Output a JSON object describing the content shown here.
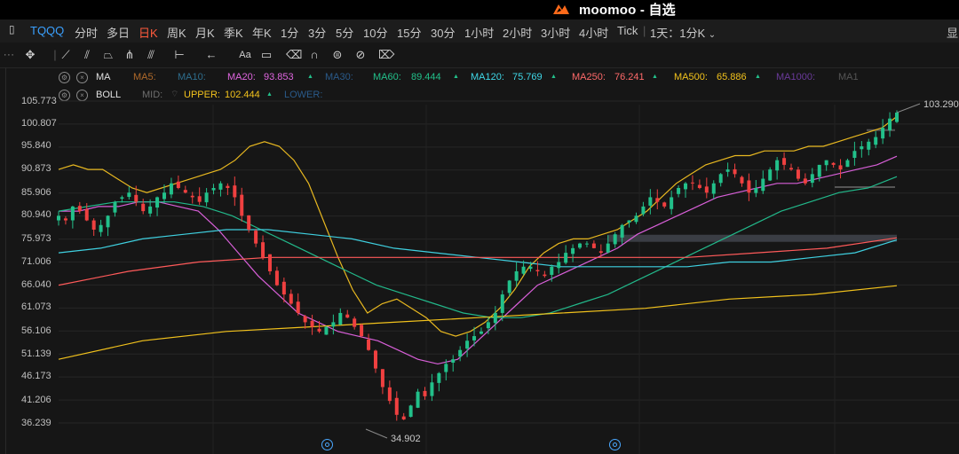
{
  "titlebar": {
    "app_title": "moomoo - 自选"
  },
  "toolbar": {
    "symbol": "TQQQ",
    "periods": [
      "分时",
      "多日",
      "日K",
      "周K",
      "月K",
      "季K",
      "年K",
      "1分",
      "3分",
      "5分",
      "10分",
      "15分",
      "30分",
      "1小时",
      "2小时",
      "3小时",
      "4小时",
      "Tick"
    ],
    "active_period": "日K",
    "multi_select": "1天：1分K",
    "right_label": "显"
  },
  "indicators": {
    "ma": {
      "name": "MA",
      "items": [
        {
          "label": "MA5:",
          "value": "",
          "color": "#b06a2a"
        },
        {
          "label": "MA10:",
          "value": "",
          "color": "#2e6e8e"
        },
        {
          "label": "MA20:",
          "value": "93.853",
          "color": "#e066e0"
        },
        {
          "label": "MA30:",
          "value": "",
          "color": "#2a5a8a"
        },
        {
          "label": "MA60:",
          "value": "89.444",
          "color": "#22c08a"
        },
        {
          "label": "MA120:",
          "value": "75.769",
          "color": "#3fd8e8"
        },
        {
          "label": "MA250:",
          "value": "76.241",
          "color": "#ff6a6a"
        },
        {
          "label": "MA500:",
          "value": "65.886",
          "color": "#f2c21c"
        },
        {
          "label": "MA1000:",
          "value": "",
          "color": "#6a3a9a"
        },
        {
          "label": "MA1",
          "value": "",
          "color": "#555555"
        }
      ]
    },
    "boll": {
      "name": "BOLL",
      "items": [
        {
          "label": "MID:",
          "value": "",
          "color": "#6e6e6e"
        },
        {
          "label": "UPPER:",
          "value": "102.444",
          "color": "#f2c21c"
        },
        {
          "label": "LOWER:",
          "value": "",
          "color": "#2a5a8a"
        }
      ]
    }
  },
  "y_axis": [
    "105.773",
    "100.807",
    "95.840",
    "90.873",
    "85.906",
    "80.940",
    "75.973",
    "71.006",
    "66.040",
    "61.073",
    "56.106",
    "51.139",
    "46.173",
    "41.206",
    "36.239"
  ],
  "annotations": {
    "high_label": "103.290",
    "low_label": "34.902"
  },
  "chart_data": {
    "type": "candlestick",
    "ylim": [
      33.5,
      108.7
    ],
    "y_ticks": [
      105.773,
      100.807,
      95.84,
      90.873,
      85.906,
      80.94,
      75.973,
      71.006,
      66.04,
      61.073,
      56.106,
      51.139,
      46.173,
      41.206,
      36.239
    ],
    "high": 103.29,
    "low": 34.902,
    "closes_approx": [
      81,
      80,
      83,
      82,
      80,
      78,
      79,
      81,
      84,
      85,
      86,
      84,
      82,
      83,
      85,
      86,
      88,
      87,
      86,
      85,
      84,
      86,
      87,
      88,
      87,
      85,
      81,
      78,
      75,
      72,
      69,
      66,
      64,
      62,
      60,
      58,
      57,
      56,
      57,
      58,
      60,
      59,
      57,
      55,
      52,
      48,
      44,
      41,
      38,
      37,
      40,
      43,
      42,
      45,
      47,
      49,
      50,
      52,
      54,
      55,
      56,
      58,
      60,
      64,
      67,
      69,
      70,
      70,
      69,
      68,
      70,
      71,
      73,
      74,
      75,
      75,
      74,
      73,
      75,
      77,
      79,
      80,
      81,
      83,
      85,
      84,
      83,
      85,
      87,
      88,
      88,
      87,
      86,
      88,
      90,
      91,
      90,
      88,
      86,
      87,
      89,
      91,
      93,
      92,
      91,
      89,
      88,
      90,
      92,
      93,
      92,
      91,
      93,
      95,
      96,
      97,
      98,
      100,
      102,
      103.29
    ],
    "series": [
      {
        "name": "BOLL UPPER",
        "color": "#e8b820",
        "values": [
          91,
          92,
          91,
          91,
          89,
          87,
          86,
          87,
          88,
          89,
          90,
          91,
          93,
          96,
          97,
          96,
          93,
          88,
          80,
          72,
          65,
          60,
          62,
          63,
          61,
          59,
          56,
          55,
          56,
          58,
          61,
          65,
          70,
          73,
          75,
          76,
          76,
          77,
          78,
          80,
          82,
          85,
          88,
          90,
          92,
          93,
          94,
          94,
          95,
          95,
          95,
          96,
          96,
          97,
          98,
          99,
          100,
          102.444
        ]
      },
      {
        "name": "MA20",
        "color": "#d85fd8",
        "values": [
          82,
          82,
          83,
          83,
          84,
          84,
          83,
          82,
          78,
          73,
          68,
          64,
          60,
          58,
          56,
          55,
          54,
          52,
          50,
          49,
          50,
          54,
          58,
          62,
          66,
          68,
          70,
          72,
          74,
          77,
          79,
          81,
          83,
          85,
          86,
          87,
          88,
          88,
          89,
          90,
          91,
          92,
          93.853
        ]
      },
      {
        "name": "MA60",
        "color": "#22b88a",
        "values": [
          82,
          83,
          84,
          84,
          84,
          83,
          81,
          78,
          75,
          72,
          69,
          66,
          64,
          62,
          60,
          59,
          59,
          60,
          62,
          64,
          67,
          70,
          73,
          76,
          79,
          82,
          84,
          86,
          87,
          89.444
        ]
      },
      {
        "name": "MA120",
        "color": "#3fd0e0",
        "values": [
          73,
          74,
          76,
          77,
          78,
          78,
          77,
          76,
          74,
          73,
          72,
          71,
          70,
          70,
          70,
          70,
          71,
          71,
          72,
          73,
          75.769
        ]
      },
      {
        "name": "MA250",
        "color": "#ff5a5a",
        "values": [
          66,
          69,
          71,
          72,
          72,
          72,
          72,
          72,
          72,
          72,
          73,
          74,
          76.241
        ]
      },
      {
        "name": "MA500",
        "color": "#f2c21c",
        "values": [
          50,
          54,
          56,
          57,
          58,
          59,
          60,
          61,
          63,
          64,
          65.886
        ]
      }
    ]
  }
}
